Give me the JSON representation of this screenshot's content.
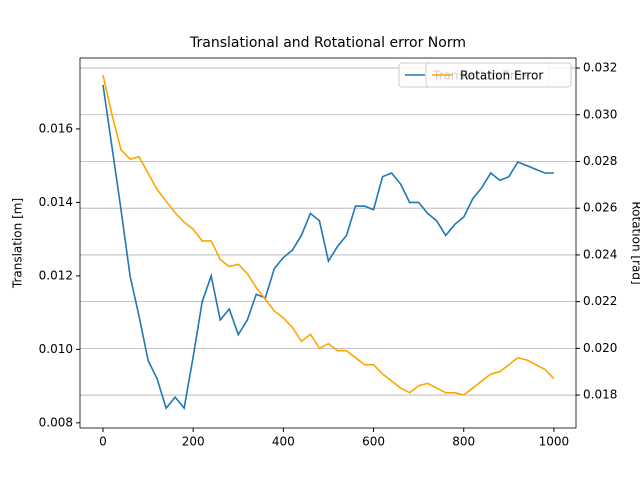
{
  "chart_data": {
    "type": "line",
    "title": "Translational  and Rotational error Norm",
    "y_label": "Translation [m]",
    "y2_label": "Rotation [rad]",
    "x": [
      0,
      20,
      40,
      60,
      80,
      100,
      120,
      140,
      160,
      180,
      200,
      220,
      240,
      260,
      280,
      300,
      320,
      340,
      360,
      380,
      400,
      420,
      440,
      460,
      480,
      500,
      520,
      540,
      560,
      580,
      600,
      620,
      640,
      660,
      680,
      700,
      720,
      740,
      760,
      780,
      800,
      820,
      840,
      860,
      880,
      900,
      920,
      940,
      960,
      980,
      1000
    ],
    "series": [
      {
        "name": "Translation Error",
        "color": "#1f77b4",
        "axis": "y",
        "values": [
          0.0172,
          0.0155,
          0.0138,
          0.012,
          0.0109,
          0.0097,
          0.0092,
          0.0084,
          0.0087,
          0.0084,
          0.0098,
          0.0113,
          0.012,
          0.0108,
          0.0111,
          0.0104,
          0.0108,
          0.0115,
          0.0114,
          0.0122,
          0.0125,
          0.0127,
          0.0131,
          0.0137,
          0.0135,
          0.0124,
          0.0128,
          0.0131,
          0.0139,
          0.0139,
          0.0138,
          0.0147,
          0.0148,
          0.0145,
          0.014,
          0.014,
          0.0137,
          0.0135,
          0.0131,
          0.0134,
          0.0136,
          0.0141,
          0.0144,
          0.0148,
          0.0146,
          0.0147,
          0.0151,
          0.015,
          0.0149,
          0.0148,
          0.0148
        ]
      },
      {
        "name": "Rotation Error",
        "color": "#ffa500",
        "axis": "y2",
        "values": [
          0.0317,
          0.03,
          0.0285,
          0.0281,
          0.0282,
          0.0275,
          0.0268,
          0.0263,
          0.0258,
          0.0254,
          0.0251,
          0.0246,
          0.0246,
          0.0238,
          0.0235,
          0.0236,
          0.0232,
          0.0226,
          0.0221,
          0.0216,
          0.0213,
          0.0209,
          0.0203,
          0.0206,
          0.02,
          0.0202,
          0.0199,
          0.0199,
          0.0196,
          0.0193,
          0.0193,
          0.0189,
          0.0186,
          0.0183,
          0.0181,
          0.0184,
          0.0185,
          0.0183,
          0.0181,
          0.0181,
          0.018,
          0.0183,
          0.0186,
          0.0189,
          0.019,
          0.0193,
          0.0196,
          0.0195,
          0.0193,
          0.0191,
          0.0187
        ]
      }
    ],
    "xlim": [
      -51,
      1049
    ],
    "xticks": [
      0,
      200,
      400,
      600,
      800,
      1000
    ],
    "ylim": [
      0.00786,
      0.01793
    ],
    "yticks": [
      0.008,
      {
        "value": 0.01,
        "label": "0.010"
      },
      0.012,
      0.014,
      0.016
    ],
    "y2lim": [
      0.01659,
      0.03243
    ],
    "y2ticks": [
      0.018,
      {
        "value": 0.02,
        "label": "0.020"
      },
      0.022,
      0.024,
      0.026,
      0.028,
      {
        "value": 0.03,
        "label": "0.030"
      },
      0.032
    ],
    "grid": "y2",
    "legend": "upper right"
  }
}
